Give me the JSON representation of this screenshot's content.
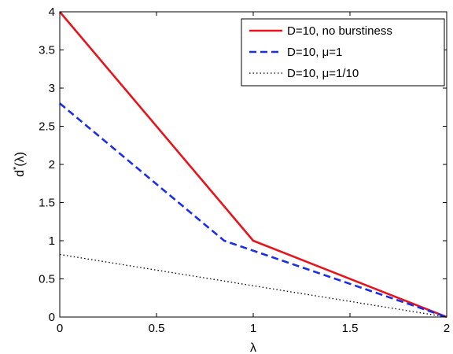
{
  "chart_data": {
    "type": "line",
    "xlabel": "λ",
    "ylabel": "d*(λ)",
    "ylabel_base": "d",
    "ylabel_sup": "*",
    "ylabel_rest": "(λ)",
    "xlim": [
      0,
      2
    ],
    "ylim": [
      0,
      4
    ],
    "x_ticks": [
      0,
      0.5,
      1,
      1.5,
      2
    ],
    "x_tick_labels": [
      "0",
      "0.5",
      "1",
      "1.5",
      "2"
    ],
    "y_ticks": [
      0,
      0.5,
      1,
      1.5,
      2,
      2.5,
      3,
      3.5,
      4
    ],
    "y_tick_labels": [
      "0",
      "0.5",
      "1",
      "1.5",
      "2",
      "2.5",
      "3",
      "3.5",
      "4"
    ],
    "grid": false,
    "legend_position": "top-right",
    "series": [
      {
        "name": "D=10, no burstiness",
        "color": "#e8141c",
        "style": "solid",
        "x": [
          0,
          1,
          2
        ],
        "y": [
          4,
          1,
          0
        ]
      },
      {
        "name": "D=10, μ=1",
        "color": "#1a2ee8",
        "style": "dashed",
        "x": [
          0,
          0.85,
          2
        ],
        "y": [
          2.8,
          1.0,
          0
        ]
      },
      {
        "name": "D=10, μ=1/10",
        "color": "#000000",
        "style": "dotted",
        "x": [
          0,
          2
        ],
        "y": [
          0.82,
          0
        ]
      }
    ]
  }
}
